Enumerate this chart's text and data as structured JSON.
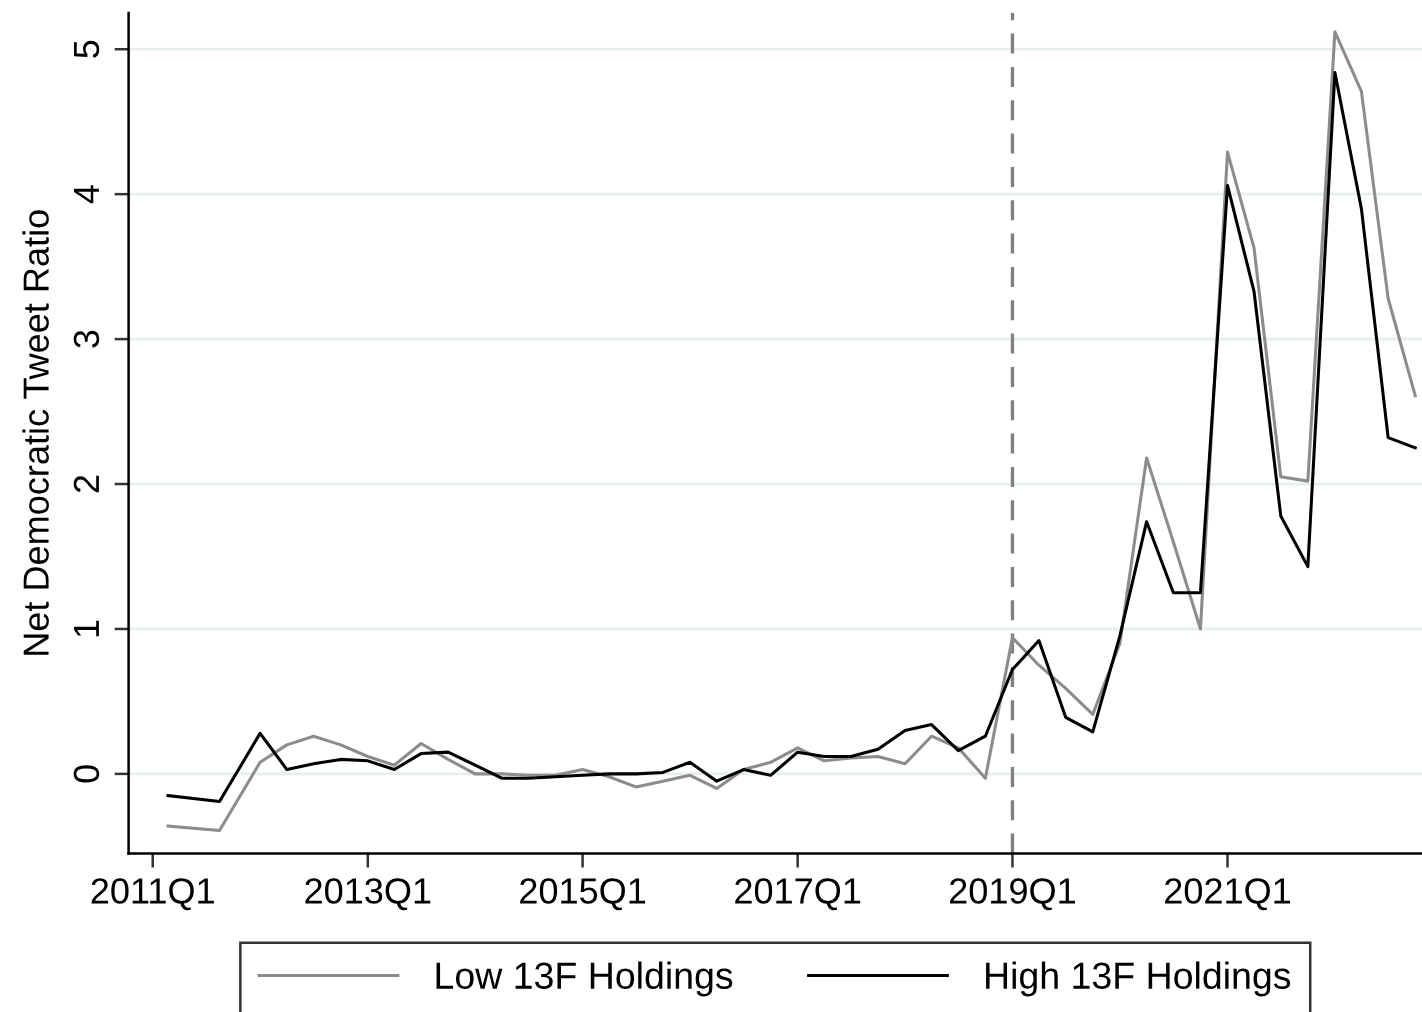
{
  "chart_data": {
    "type": "line",
    "ylabel": "Net Democratic Tweet Ratio",
    "xlim": [
      "2010-10-11",
      "2022-10-24"
    ],
    "ylim": [
      -0.55,
      5.25
    ],
    "xticks": [
      {
        "value": "2011-01",
        "label": "2011Q1"
      },
      {
        "value": "2013-01",
        "label": "2013Q1"
      },
      {
        "value": "2015-01",
        "label": "2015Q1"
      },
      {
        "value": "2017-01",
        "label": "2017Q1"
      },
      {
        "value": "2019-01",
        "label": "2019Q1"
      },
      {
        "value": "2021-01",
        "label": "2021Q1"
      }
    ],
    "yticks": [
      0,
      1,
      2,
      3,
      4,
      5
    ],
    "x": [
      "2011-02-22",
      "2011-08-16",
      "2012-01",
      "2012-04",
      "2012-07",
      "2012-10",
      "2013-01",
      "2013-04",
      "2013-07",
      "2013-10",
      "2014-01",
      "2014-04",
      "2014-07",
      "2014-10",
      "2015-01",
      "2015-04",
      "2015-07",
      "2015-10",
      "2016-01",
      "2016-04",
      "2016-07",
      "2016-10",
      "2017-01",
      "2017-04",
      "2017-07",
      "2017-10",
      "2018-01",
      "2018-04",
      "2018-07",
      "2018-10",
      "2019-01",
      "2019-04",
      "2019-07",
      "2019-10",
      "2020-01",
      "2020-04",
      "2020-07",
      "2020-10",
      "2021-01",
      "2021-04",
      "2021-07",
      "2021-10",
      "2022-01",
      "2022-04",
      "2022-07",
      "2022-10"
    ],
    "series": [
      {
        "name": "Low 13F Holdings",
        "color": "#8c8c8c",
        "values": [
          -0.36,
          -0.39,
          0.08,
          0.2,
          0.26,
          0.2,
          0.12,
          0.06,
          0.21,
          0.1,
          0.0,
          0.0,
          -0.01,
          -0.01,
          0.03,
          -0.02,
          -0.09,
          -0.05,
          -0.01,
          -0.1,
          0.03,
          0.08,
          0.18,
          0.09,
          0.11,
          0.12,
          0.07,
          0.26,
          0.18,
          -0.03,
          0.94,
          0.75,
          0.59,
          0.41,
          0.9,
          2.18,
          1.6,
          1.0,
          4.29,
          3.63,
          2.05,
          2.02,
          5.12,
          4.71,
          3.28,
          2.61
        ]
      },
      {
        "name": "High 13F Holdings",
        "color": "#000000",
        "values": [
          -0.15,
          -0.19,
          0.28,
          0.03,
          0.07,
          0.1,
          0.09,
          0.03,
          0.14,
          0.15,
          0.06,
          -0.03,
          -0.03,
          -0.02,
          -0.01,
          0.0,
          0.0,
          0.01,
          0.08,
          -0.05,
          0.03,
          -0.01,
          0.15,
          0.12,
          0.12,
          0.17,
          0.3,
          0.34,
          0.16,
          0.26,
          0.72,
          0.92,
          0.39,
          0.29,
          0.95,
          1.74,
          1.25,
          1.25,
          4.06,
          3.33,
          1.78,
          1.43,
          4.84,
          3.9,
          2.32,
          2.25
        ]
      }
    ],
    "ref_lines": [
      {
        "axis": "x",
        "value": "2019-01",
        "color": "#808080",
        "line_style": "dashed"
      }
    ],
    "grid": "y",
    "legend": "bottom",
    "line_style": "solid",
    "marker": "none"
  }
}
